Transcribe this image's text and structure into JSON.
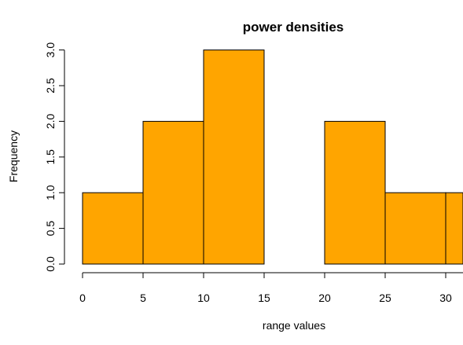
{
  "chart_data": {
    "type": "bar",
    "title": "power densities",
    "xlabel": "range values",
    "ylabel": "Frequency",
    "bins": [
      {
        "start": 0,
        "end": 5,
        "value": 1
      },
      {
        "start": 5,
        "end": 10,
        "value": 2
      },
      {
        "start": 10,
        "end": 15,
        "value": 3
      },
      {
        "start": 15,
        "end": 20,
        "value": 0
      },
      {
        "start": 20,
        "end": 25,
        "value": 2
      },
      {
        "start": 25,
        "end": 30,
        "value": 1
      },
      {
        "start": 30,
        "end": 35,
        "value": 1
      }
    ],
    "x_ticks": [
      "0",
      "5",
      "10",
      "15",
      "20",
      "25",
      "30"
    ],
    "y_ticks": [
      "0.0",
      "0.5",
      "1.0",
      "1.5",
      "2.0",
      "2.5",
      "3.0"
    ],
    "ylim": [
      0,
      3
    ],
    "bar_color": "#FFA500",
    "grid": false
  }
}
